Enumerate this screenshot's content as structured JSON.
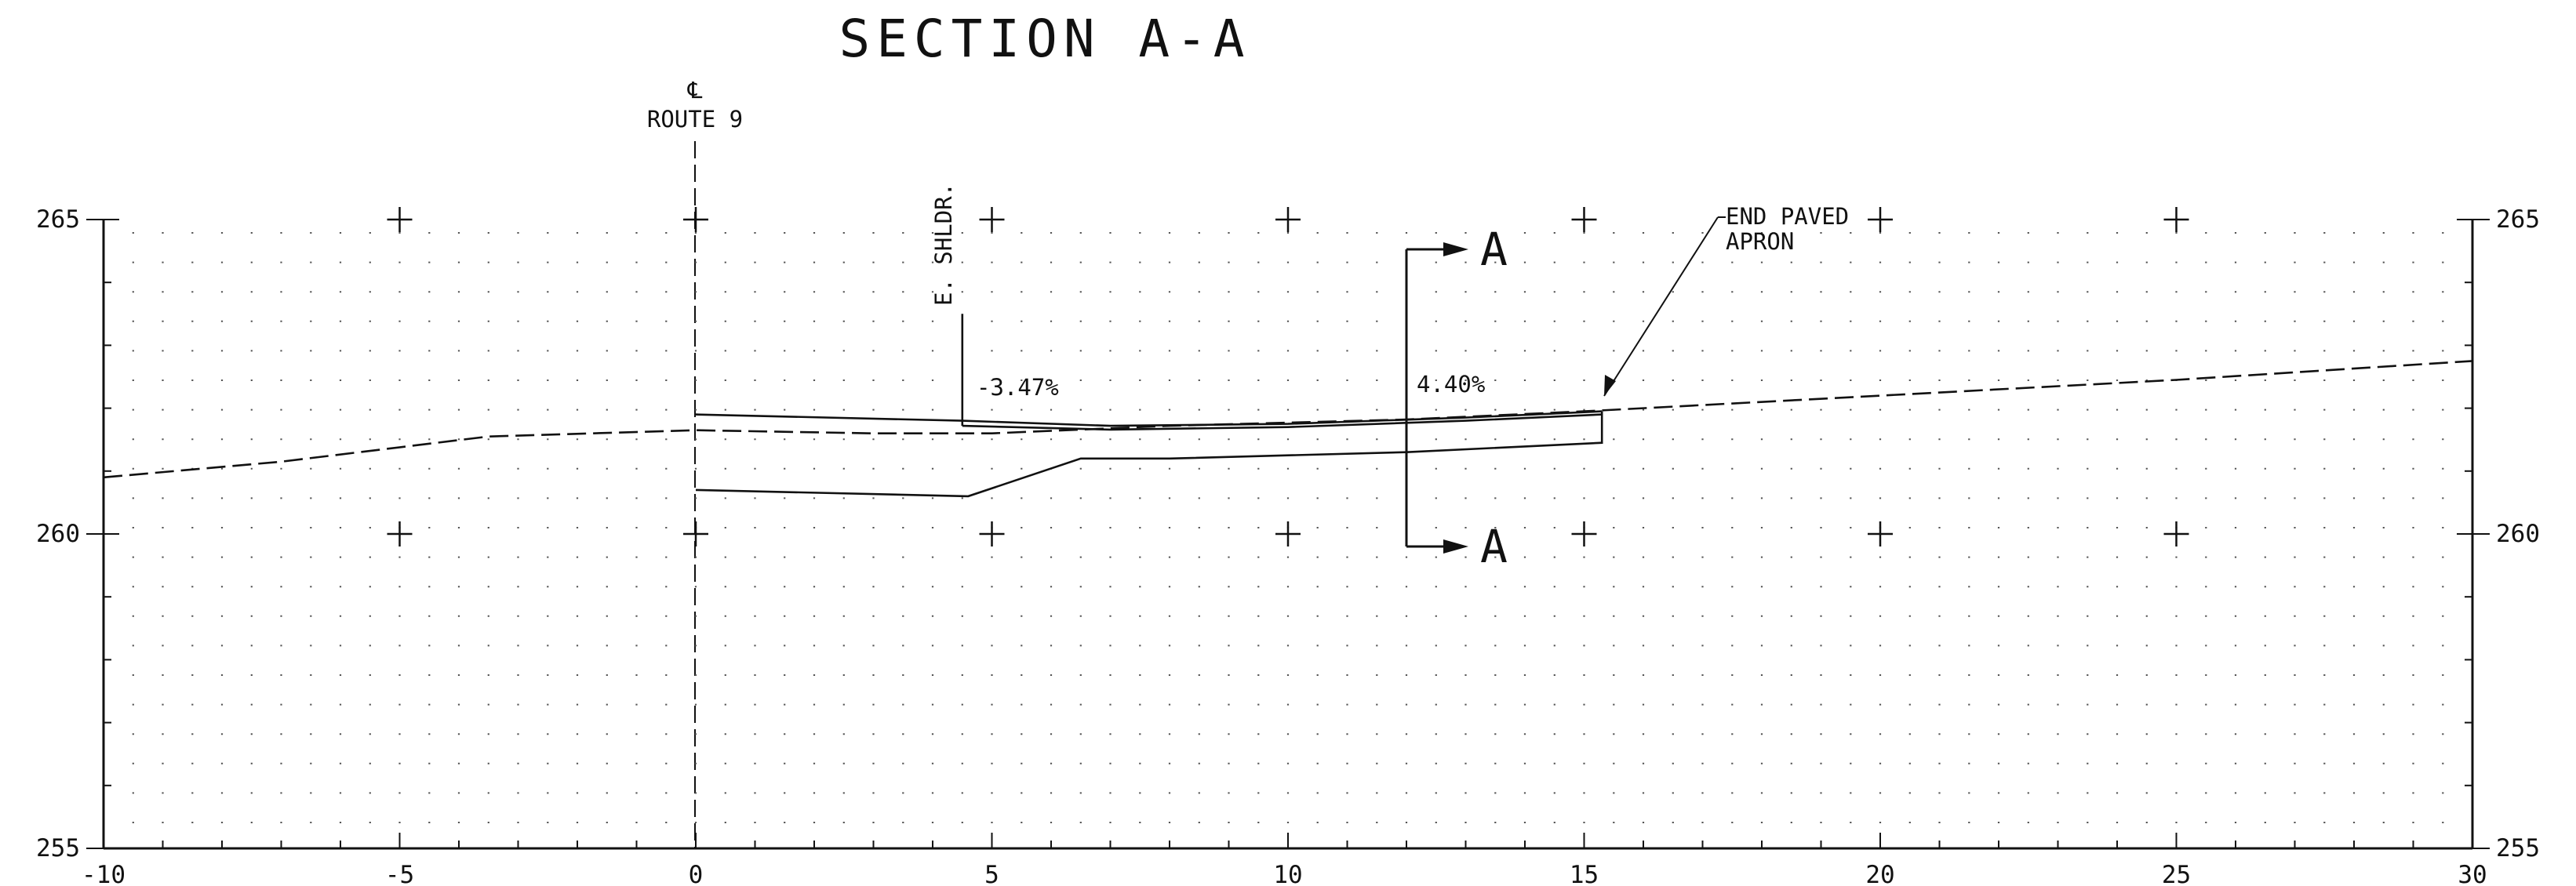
{
  "title": "SECTION A-A",
  "centerline": {
    "symbol": "℄",
    "label": "ROUTE 9"
  },
  "shoulder_label": "E. SHLDR.",
  "slopes": {
    "left": "-3.47%",
    "right": "4.40%"
  },
  "callout": {
    "line1": "END PAVED",
    "line2": "APRON"
  },
  "section_marker": "A",
  "colors": {
    "ink": "#111111",
    "background": "#ffffff"
  },
  "chart_data": {
    "type": "line",
    "title": "SECTION A-A",
    "xlabel": "",
    "ylabel": "",
    "xlim": [
      -10,
      30
    ],
    "ylim": [
      255,
      265
    ],
    "x_ticks": [
      -10,
      -5,
      0,
      5,
      10,
      15,
      20,
      25,
      30
    ],
    "x_tick_labels": [
      "-10",
      "-5",
      "0",
      "5",
      "10",
      "15",
      "20",
      "25",
      "30"
    ],
    "y_ticks": [
      255,
      260,
      265
    ],
    "y_tick_labels": [
      "255",
      "260",
      "265"
    ],
    "grid": "dotted",
    "series": [
      {
        "style": "dashed",
        "points": [
          [
            -10,
            260.9
          ],
          [
            -7,
            261.15
          ],
          [
            -3.5,
            261.55
          ],
          [
            0,
            261.65
          ],
          [
            3,
            261.6
          ],
          [
            5,
            261.6
          ],
          [
            8,
            261.72
          ],
          [
            12,
            261.82
          ],
          [
            15,
            261.95
          ],
          [
            20,
            262.2
          ],
          [
            25,
            262.45
          ],
          [
            30,
            262.75
          ]
        ]
      },
      {
        "style": "solid",
        "points": [
          [
            0,
            261.9
          ],
          [
            4.5,
            261.8
          ],
          [
            7,
            261.72
          ],
          [
            10,
            261.75
          ],
          [
            13,
            261.85
          ],
          [
            15.3,
            261.95
          ]
        ]
      },
      {
        "style": "solid",
        "points": [
          [
            4.5,
            261.72
          ],
          [
            7,
            261.66
          ],
          [
            10,
            261.7
          ],
          [
            13,
            261.8
          ],
          [
            15.3,
            261.9
          ]
        ]
      },
      {
        "style": "solid",
        "points": [
          [
            0,
            260.7
          ],
          [
            4.6,
            260.6
          ],
          [
            6.5,
            261.2
          ],
          [
            8,
            261.2
          ],
          [
            12,
            261.3
          ],
          [
            15.3,
            261.45
          ],
          [
            15.3,
            261.95
          ]
        ]
      },
      {
        "style": "solid",
        "points": [
          [
            4.5,
            263.5
          ],
          [
            4.5,
            261.72
          ]
        ]
      }
    ]
  }
}
